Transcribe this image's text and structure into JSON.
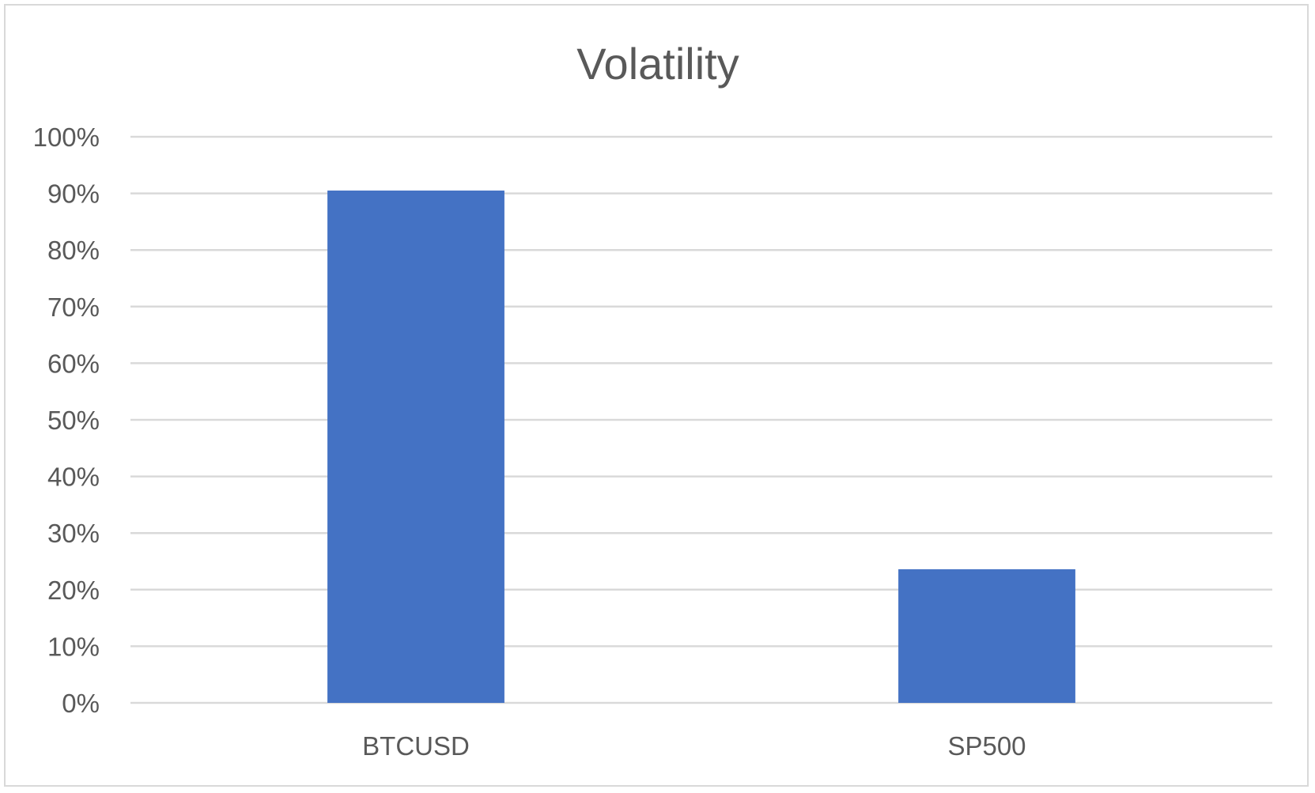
{
  "chart_data": {
    "type": "bar",
    "title": "Volatility",
    "xlabel": "",
    "ylabel": "",
    "categories": [
      "BTCUSD",
      "SP500"
    ],
    "values": [
      0.905,
      0.236
    ],
    "ylim": [
      0,
      1
    ],
    "yticks": [
      0,
      0.1,
      0.2,
      0.3,
      0.4,
      0.5,
      0.6,
      0.7,
      0.8,
      0.9,
      1.0
    ],
    "ytick_labels": [
      "0%",
      "10%",
      "20%",
      "30%",
      "40%",
      "50%",
      "60%",
      "70%",
      "80%",
      "90%",
      "100%"
    ],
    "grid": true,
    "legend": "none",
    "bar_color": "#4472C4",
    "grid_color": "#d9d9d9",
    "text_color": "#595959"
  }
}
